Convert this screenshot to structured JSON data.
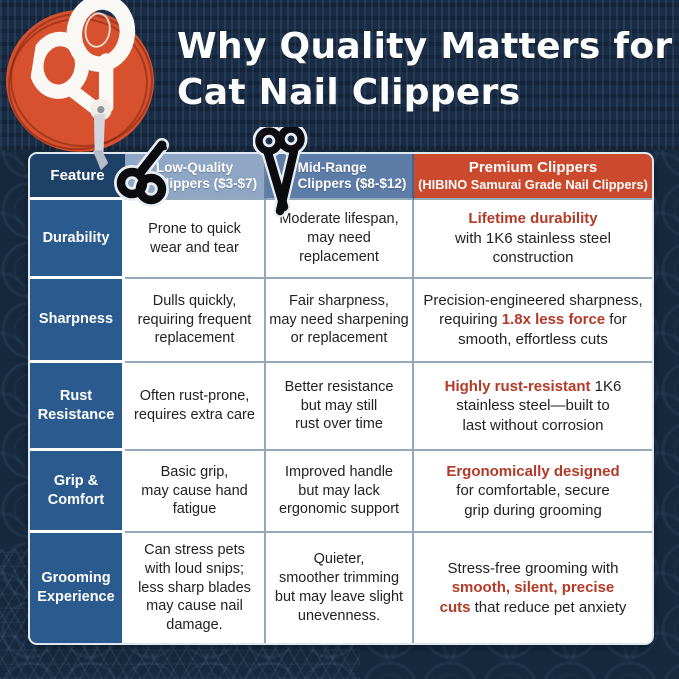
{
  "title": {
    "line1": "Why Quality Matters for",
    "line2": "Cat Nail Clippers"
  },
  "colors": {
    "background_navy": "#16293f",
    "accent_red_circle": "#d7512f",
    "premium_header_red": "#cb4a2d",
    "feature_header_navy": "#1e4168",
    "feature_cell_blue": "#2b5a8e",
    "low_header_blue": "#8fa6c4",
    "mid_header_blue": "#5d7da8",
    "highlight_red": "#b23a27"
  },
  "table": {
    "headers": {
      "feature": "Feature",
      "low": "Low-Quality\nClippers ($3-$7)",
      "mid": "Mid-Range\nClippers ($8-$12)",
      "premium_line1": "Premium Clippers",
      "premium_line2": "(HIBINO Samurai Grade Nail Clippers)"
    },
    "rows": [
      {
        "feature": "Durability",
        "low": "Prone to quick\nwear and tear",
        "mid": "Moderate lifespan,\nmay need replacement",
        "premium": [
          {
            "text": "Lifetime durability",
            "highlight": true
          },
          {
            "text": "\nwith 1K6 stainless steel construction",
            "highlight": false
          }
        ]
      },
      {
        "feature": "Sharpness",
        "low": "Dulls quickly,\nrequiring frequent\nreplacement",
        "mid": "Fair sharpness,\nmay need sharpening\nor replacement",
        "premium": [
          {
            "text": "Precision-engineered sharpness,\nrequiring ",
            "highlight": false
          },
          {
            "text": "1.8x less force",
            "highlight": true
          },
          {
            "text": " for\nsmooth, effortless cuts",
            "highlight": false
          }
        ]
      },
      {
        "feature": "Rust\nResistance",
        "low": "Often rust-prone,\nrequires extra care",
        "mid": "Better resistance\nbut may still\nrust over time",
        "premium": [
          {
            "text": "Highly rust-resistant",
            "highlight": true
          },
          {
            "text": " 1K6\nstainless steel—built to\nlast without corrosion",
            "highlight": false
          }
        ]
      },
      {
        "feature": "Grip &\nComfort",
        "low": "Basic grip,\nmay cause hand\nfatigue",
        "mid": "Improved handle\nbut may lack\nergonomic support",
        "premium": [
          {
            "text": "Ergonomically designed",
            "highlight": true
          },
          {
            "text": "\nfor comfortable, secure\ngrip during grooming",
            "highlight": false
          }
        ]
      },
      {
        "feature": "Grooming\nExperience",
        "low": "Can stress pets\nwith loud snips;\nless sharp blades\nmay cause nail\ndamage.",
        "mid": "Quieter,\nsmoother trimming\nbut may leave slight\nunevenness.",
        "premium": [
          {
            "text": "Stress-free grooming with\n",
            "highlight": false
          },
          {
            "text": "smooth, silent, precise\ncuts",
            "highlight": true
          },
          {
            "text": " that reduce pet anxiety",
            "highlight": false
          }
        ]
      }
    ]
  },
  "icons": {
    "hero": "cat-nail-clippers-photo",
    "low_header": "scissors-icon",
    "mid_header": "scissors-icon"
  }
}
